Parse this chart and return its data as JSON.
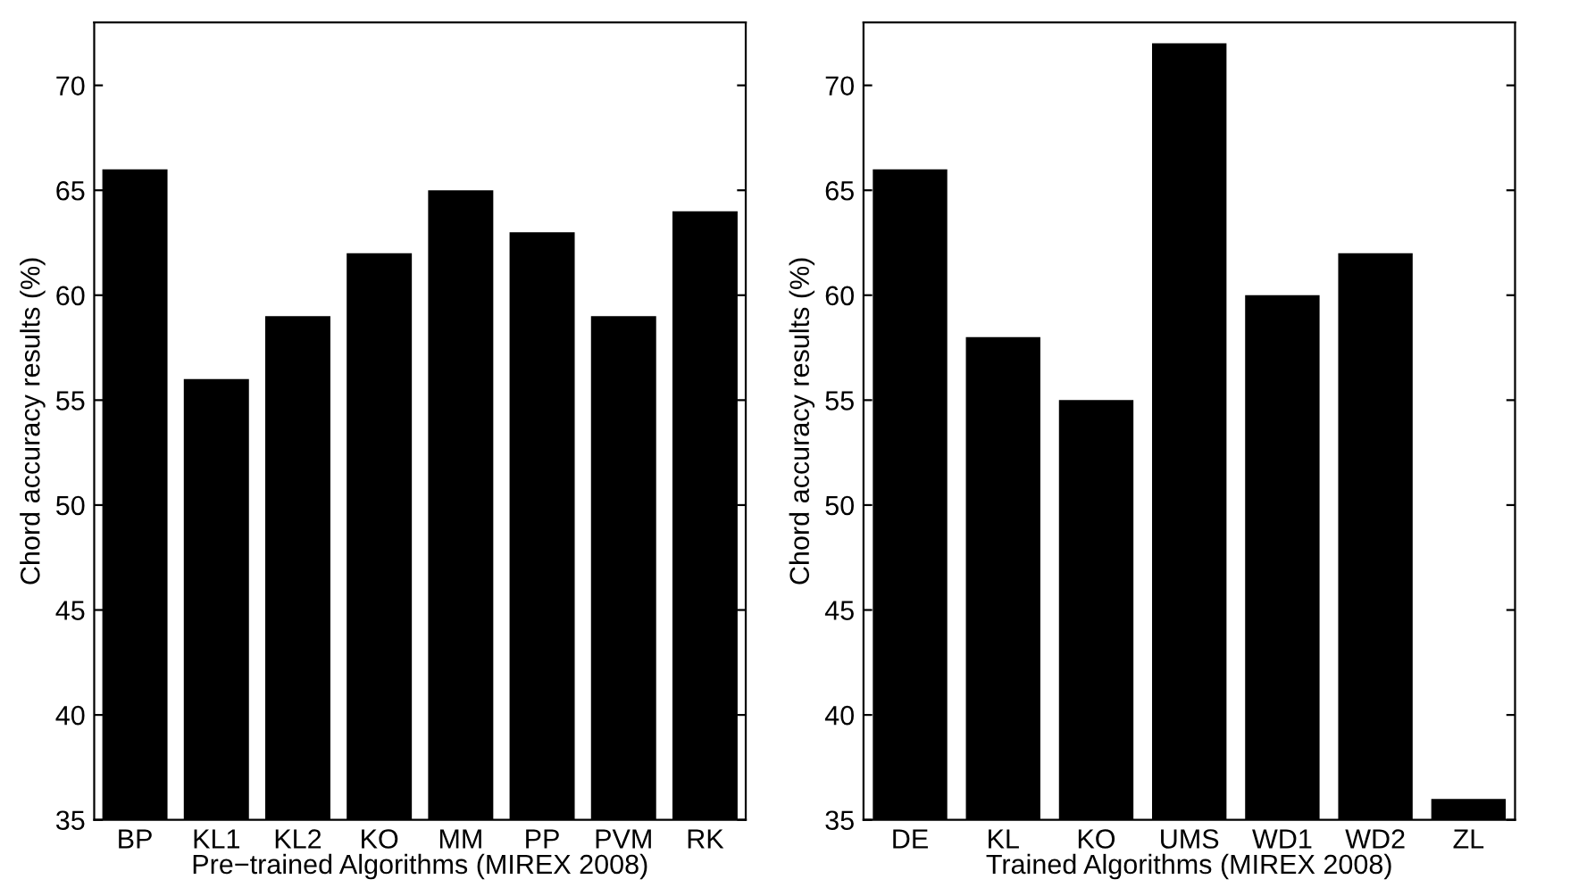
{
  "chart_data": [
    {
      "type": "bar",
      "categories": [
        "BP",
        "KL1",
        "KL2",
        "KO",
        "MM",
        "PP",
        "PVM",
        "RK"
      ],
      "values": [
        66,
        56,
        59,
        62,
        65,
        63,
        59,
        64
      ],
      "color": "#000000",
      "xlabel": "Pre−trained Algorithms (MIREX 2008)",
      "ylabel": "Chord accuracy results (%)",
      "ylim": [
        35,
        73
      ],
      "yticks": [
        35,
        40,
        45,
        50,
        55,
        60,
        65,
        70
      ],
      "grid": false
    },
    {
      "type": "bar",
      "categories": [
        "DE",
        "KL",
        "KO",
        "UMS",
        "WD1",
        "WD2",
        "ZL"
      ],
      "values": [
        66,
        58,
        55,
        72,
        60,
        62,
        36
      ],
      "color": "#000000",
      "xlabel": "Trained Algorithms (MIREX 2008)",
      "ylabel": "Chord accuracy results (%)",
      "ylim": [
        35,
        73
      ],
      "yticks": [
        35,
        40,
        45,
        50,
        55,
        60,
        65,
        70
      ],
      "grid": false
    }
  ]
}
